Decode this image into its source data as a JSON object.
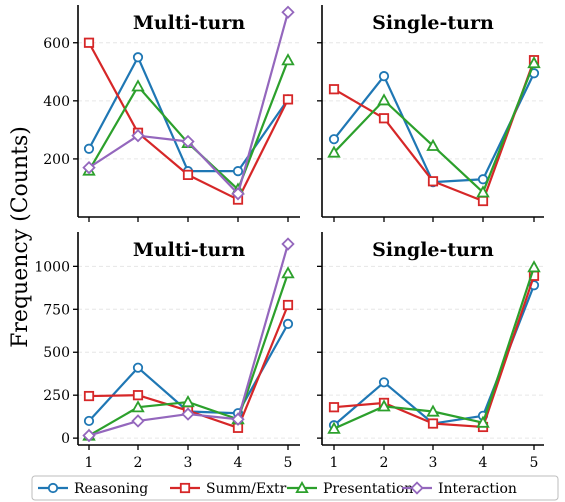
{
  "y_axis_label": "Frequency (Counts)",
  "colors": {
    "Reasoning": "#1f77b4",
    "Summ/Extr": "#d62728",
    "Presentation": "#2ca02c",
    "Interaction": "#9467bd"
  },
  "legend": [
    {
      "name": "Reasoning",
      "marker": "circle"
    },
    {
      "name": "Summ/Extr",
      "marker": "square"
    },
    {
      "name": "Presentation",
      "marker": "triangle"
    },
    {
      "name": "Interaction",
      "marker": "diamond"
    }
  ],
  "chart_data": [
    {
      "type": "line",
      "title": "Multi-turn",
      "x": [
        1,
        2,
        3,
        4,
        5
      ],
      "ylim": [
        0,
        730
      ],
      "yticks": [
        200,
        400,
        600
      ],
      "show_xticklabels": false,
      "series": [
        {
          "name": "Reasoning",
          "values": [
            235,
            550,
            158,
            158,
            405
          ]
        },
        {
          "name": "Summ/Extr",
          "values": [
            600,
            290,
            145,
            60,
            405
          ]
        },
        {
          "name": "Presentation",
          "values": [
            160,
            450,
            255,
            95,
            540
          ]
        },
        {
          "name": "Interaction",
          "values": [
            170,
            280,
            260,
            80,
            705
          ]
        }
      ]
    },
    {
      "type": "line",
      "title": "Single-turn",
      "x": [
        1,
        2,
        3,
        4,
        5
      ],
      "ylim": [
        0,
        730
      ],
      "yticks": [
        200,
        400,
        600
      ],
      "show_xticklabels": false,
      "series": [
        {
          "name": "Reasoning",
          "values": [
            268,
            485,
            120,
            130,
            495
          ]
        },
        {
          "name": "Summ/Extr",
          "values": [
            440,
            340,
            123,
            55,
            540
          ]
        },
        {
          "name": "Presentation",
          "values": [
            222,
            402,
            245,
            85,
            530
          ]
        }
      ]
    },
    {
      "type": "line",
      "title": "Multi-turn",
      "x": [
        1,
        2,
        3,
        4,
        5
      ],
      "ylim": [
        -40,
        1200
      ],
      "yticks": [
        0,
        250,
        500,
        750,
        1000
      ],
      "show_xticklabels": true,
      "series": [
        {
          "name": "Reasoning",
          "values": [
            100,
            410,
            155,
            145,
            665
          ]
        },
        {
          "name": "Summ/Extr",
          "values": [
            245,
            250,
            160,
            60,
            775
          ]
        },
        {
          "name": "Presentation",
          "values": [
            15,
            180,
            210,
            110,
            960
          ]
        },
        {
          "name": "Interaction",
          "values": [
            15,
            100,
            140,
            110,
            1130
          ]
        }
      ]
    },
    {
      "type": "line",
      "title": "Single-turn",
      "x": [
        1,
        2,
        3,
        4,
        5
      ],
      "ylim": [
        -40,
        1200
      ],
      "yticks": [
        0,
        250,
        500,
        750,
        1000
      ],
      "show_xticklabels": true,
      "series": [
        {
          "name": "Reasoning",
          "values": [
            75,
            325,
            85,
            130,
            890
          ]
        },
        {
          "name": "Summ/Extr",
          "values": [
            180,
            205,
            85,
            65,
            945
          ]
        },
        {
          "name": "Presentation",
          "values": [
            55,
            185,
            155,
            90,
            995
          ]
        }
      ]
    }
  ]
}
